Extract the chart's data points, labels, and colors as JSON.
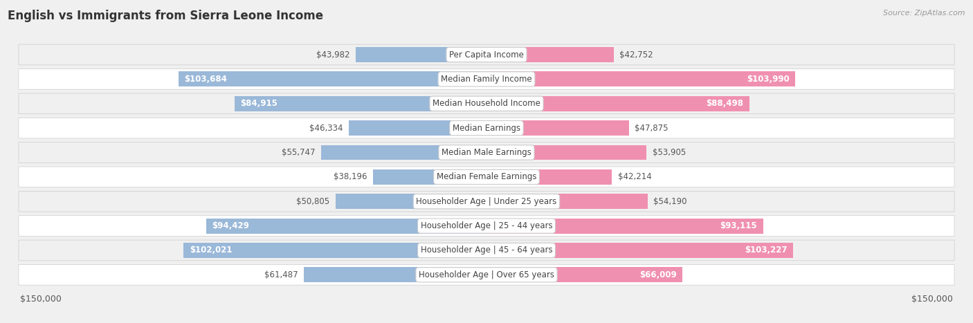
{
  "title": "English vs Immigrants from Sierra Leone Income",
  "source": "Source: ZipAtlas.com",
  "categories": [
    "Per Capita Income",
    "Median Family Income",
    "Median Household Income",
    "Median Earnings",
    "Median Male Earnings",
    "Median Female Earnings",
    "Householder Age | Under 25 years",
    "Householder Age | 25 - 44 years",
    "Householder Age | 45 - 64 years",
    "Householder Age | Over 65 years"
  ],
  "english_values": [
    43982,
    103684,
    84915,
    46334,
    55747,
    38196,
    50805,
    94429,
    102021,
    61487
  ],
  "immigrant_values": [
    42752,
    103990,
    88498,
    47875,
    53905,
    42214,
    54190,
    93115,
    103227,
    66009
  ],
  "english_labels": [
    "$43,982",
    "$103,684",
    "$84,915",
    "$46,334",
    "$55,747",
    "$38,196",
    "$50,805",
    "$94,429",
    "$102,021",
    "$61,487"
  ],
  "immigrant_labels": [
    "$42,752",
    "$103,990",
    "$88,498",
    "$47,875",
    "$53,905",
    "$42,214",
    "$54,190",
    "$93,115",
    "$103,227",
    "$66,009"
  ],
  "english_color": "#9ab8d8",
  "immigrant_color": "#f090b0",
  "english_color_light": "#c5d9ee",
  "immigrant_color_light": "#f8bcd0",
  "max_value": 150000,
  "bar_height": 0.62,
  "inside_threshold": 65000,
  "label_fontsize": 8.5,
  "category_fontsize": 8.5,
  "title_fontsize": 12,
  "source_fontsize": 8,
  "legend_fontsize": 9,
  "row_colors": [
    "#f0f0f0",
    "#ffffff"
  ],
  "fig_bg": "#f0f0f0"
}
